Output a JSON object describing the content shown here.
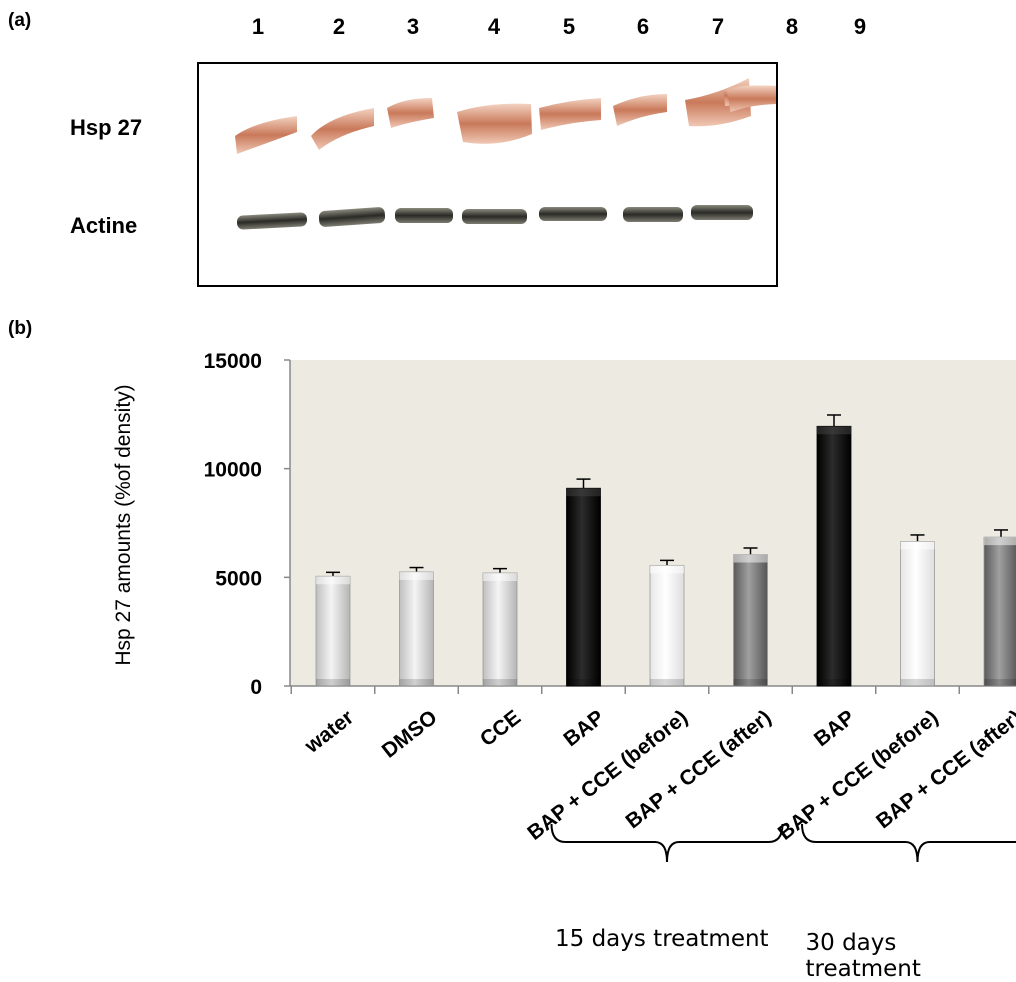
{
  "panel_a": {
    "label": "(a)",
    "lanes": [
      "1",
      "2",
      "3",
      "4",
      "5",
      "6",
      "7",
      "8",
      "9"
    ],
    "row_labels": [
      "Hsp 27",
      "Actine"
    ]
  },
  "panel_b": {
    "label": "(b)"
  },
  "colors": {
    "plot_bg": "#edeae1",
    "light_gray": "#dcdcdc",
    "white": "#f8f8f8",
    "black": "#111111",
    "dark_gray": "#7b7b7b"
  },
  "chart_data": {
    "type": "bar",
    "ylabel": "Hsp 27 amounts (%of density)",
    "ylim": [
      0,
      15000
    ],
    "yticks": [
      "0",
      "5000",
      "10000",
      "15000"
    ],
    "categories": [
      "water",
      "DMSO",
      "CCE",
      "BAP",
      "BAP + CCE (before)",
      "BAP + CCE (after)",
      "BAP",
      "BAP + CCE (before)",
      "BAP + CCE (after)"
    ],
    "values": [
      5050,
      5250,
      5200,
      9100,
      5550,
      6050,
      11950,
      6650,
      6850
    ],
    "errors": [
      180,
      200,
      200,
      420,
      230,
      300,
      520,
      300,
      330
    ],
    "bar_colors": [
      "light_gray",
      "light_gray",
      "light_gray",
      "black",
      "white",
      "dark_gray",
      "black",
      "white",
      "dark_gray"
    ],
    "groups": [
      {
        "label": "15 days treatment",
        "from": 3,
        "to": 5
      },
      {
        "label": "30 days treatment",
        "from": 6,
        "to": 8
      }
    ],
    "grid": false
  }
}
